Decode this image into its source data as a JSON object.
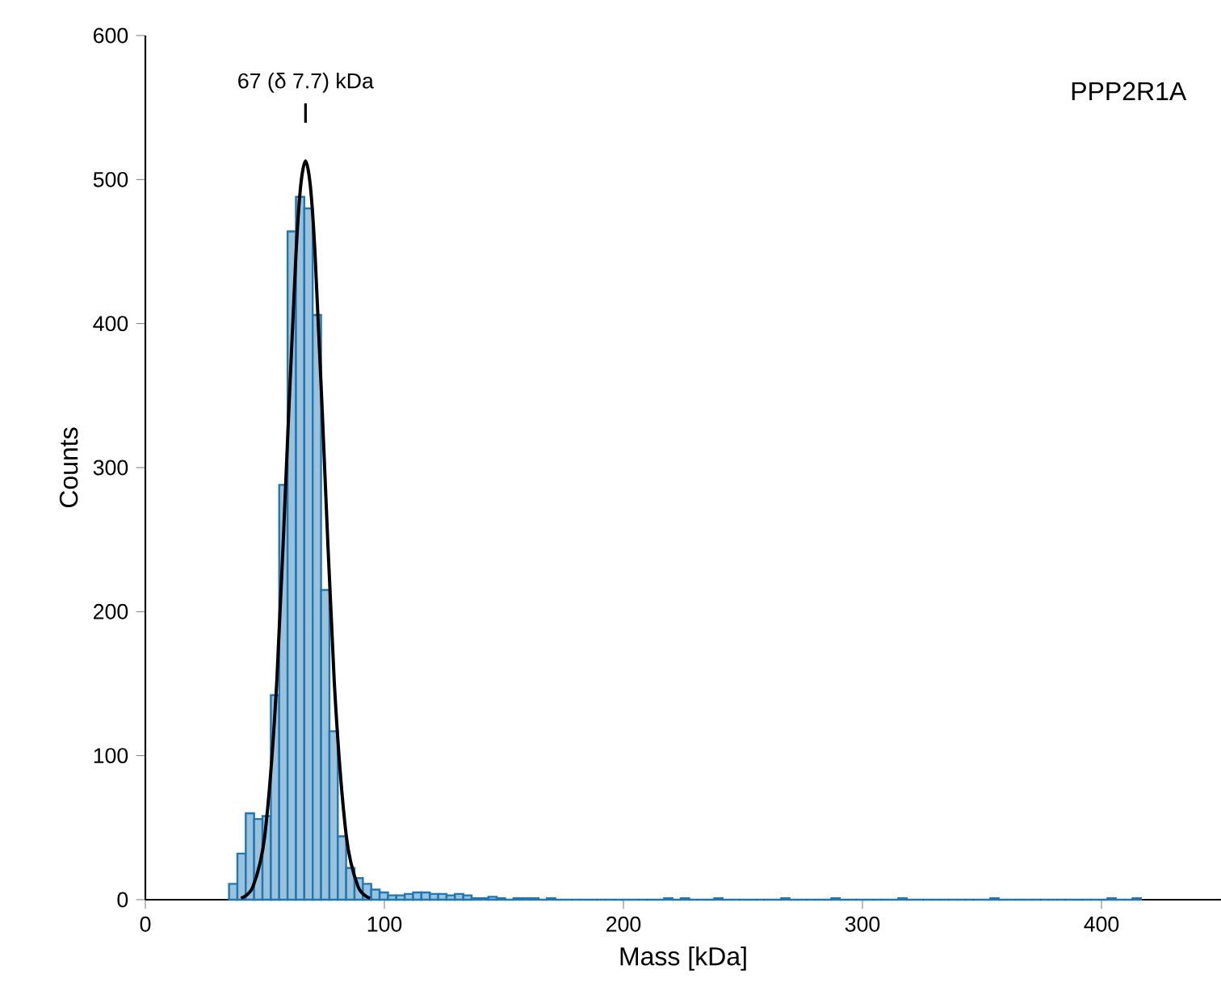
{
  "chart_data": {
    "type": "histogram",
    "xlabel": "Mass [kDa]",
    "ylabel": "Counts",
    "bins": [
      35,
      38.5,
      42,
      45.5,
      49,
      52.5,
      56,
      59.5,
      63,
      66.5,
      70,
      73.5,
      77,
      80.5,
      84,
      87.5,
      91,
      94.5,
      98,
      101.5,
      105,
      108.5,
      112,
      115.5,
      119,
      122.5,
      126,
      129.5,
      133,
      136.5,
      140,
      143.5,
      147,
      150.5,
      154,
      157.5,
      161,
      164.5,
      168,
      171.5,
      175,
      178.5,
      182,
      185.5,
      189,
      192.5,
      196,
      199.5,
      203,
      206.5,
      210,
      213.5,
      217,
      220.5,
      224,
      227.5,
      231,
      234.5,
      238,
      241.5,
      245,
      248.5,
      252,
      255.5,
      259,
      262.5,
      266,
      269.5,
      273,
      276.5,
      280,
      283.5,
      287,
      290.5,
      294,
      297.5,
      301,
      304.5,
      308,
      311.5,
      315,
      318.5,
      322,
      325.5,
      329,
      332.5,
      336,
      339.5,
      343,
      346.5,
      350,
      353.5,
      357,
      360.5,
      364,
      367.5,
      371,
      374.5,
      378,
      381.5,
      385,
      388.5,
      392,
      395.5,
      399,
      402.5,
      406,
      409.5,
      413,
      416.5
    ],
    "values": [
      11,
      32,
      60,
      56,
      58,
      142,
      288,
      464,
      488,
      480,
      406,
      215,
      117,
      44,
      22,
      15,
      11,
      7,
      5,
      3,
      3,
      4,
      5,
      5,
      4,
      4,
      3,
      4,
      3,
      1,
      1,
      2,
      1,
      0,
      1,
      1,
      1,
      0,
      1,
      0,
      0,
      0,
      0,
      0,
      0,
      0,
      0,
      0,
      0,
      0,
      0,
      0,
      1,
      0,
      1,
      0,
      0,
      0,
      1,
      0,
      0,
      0,
      0,
      0,
      0,
      0,
      1,
      0,
      0,
      0,
      0,
      0,
      1,
      0,
      0,
      0,
      0,
      0,
      0,
      0,
      1,
      0,
      0,
      0,
      0,
      0,
      0,
      0,
      0,
      0,
      0,
      1,
      0,
      0,
      0,
      0,
      0,
      0,
      0,
      0,
      0,
      0,
      0,
      0,
      0,
      1,
      0,
      0,
      1
    ],
    "color": "#1f77b4",
    "series": [
      {
        "type": "line",
        "color": "#000000",
        "x": [
          40,
          45,
          50,
          55,
          60,
          63,
          65,
          67,
          69,
          71,
          74,
          79,
          84,
          89,
          94
        ],
        "values": [
          1,
          9,
          45,
          152,
          339,
          448,
          496,
          513,
          496,
          448,
          339,
          152,
          45,
          9,
          1
        ]
      }
    ],
    "xlim": [
      0,
      450
    ],
    "ylim": [
      0,
      600
    ],
    "xticks": [
      0,
      100,
      200,
      300,
      400
    ],
    "yticks": [
      0,
      100,
      200,
      300,
      400,
      500,
      600
    ],
    "annotations": [
      "67 (δ 7.7) kDa",
      "PPP2R1A"
    ],
    "grid": false
  }
}
